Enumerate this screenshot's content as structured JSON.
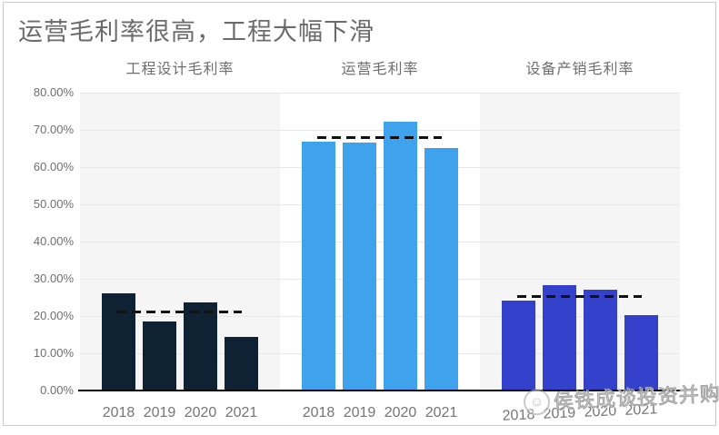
{
  "title": "运营毛利率很高，工程大幅下滑",
  "watermark": {
    "text": "侯铁成谈投资并购",
    "logo": "round-seal-icon"
  },
  "colors": {
    "band": "#f5f5f6",
    "grid": "#e8e8e8",
    "axis": "#000000",
    "dash": "#111111",
    "title_text": "#6b6b6b",
    "label_text": "#6f6f6f",
    "frame_border": "#cbcbcb"
  },
  "chart_data": {
    "type": "bar",
    "title": "运营毛利率很高，工程大幅下滑",
    "categories": [
      "2018",
      "2019",
      "2020",
      "2021"
    ],
    "groups": [
      {
        "label": "工程设计毛利率",
        "color": "#0E2233",
        "values": [
          26.2,
          18.5,
          23.6,
          14.5
        ],
        "dashed_reference": 21.0
      },
      {
        "label": "运营毛利率",
        "color": "#3FA2EC",
        "values": [
          66.8,
          66.6,
          72.1,
          65.1
        ],
        "dashed_reference": 67.8
      },
      {
        "label": "设备产销毛利率",
        "color": "#3341CB",
        "values": [
          24.1,
          28.3,
          27.1,
          20.2
        ],
        "dashed_reference": 25.1
      }
    ],
    "ylabel": "",
    "ylim": [
      0,
      80
    ],
    "yticks": [
      {
        "value": 80,
        "label": "80.00%"
      },
      {
        "value": 70,
        "label": "70.00%"
      },
      {
        "value": 60,
        "label": "60.00%"
      },
      {
        "value": 50,
        "label": "50.00%"
      },
      {
        "value": 40,
        "label": "40.00%"
      },
      {
        "value": 30,
        "label": "30.00%"
      },
      {
        "value": 20,
        "label": "20.00%"
      },
      {
        "value": 10,
        "label": "10.00%"
      },
      {
        "value": 0,
        "label": "0.00%"
      }
    ],
    "grid": true,
    "legend": false,
    "unit": "percent",
    "band_backgrounds": [
      "#f5f5f6",
      "#ffffff",
      "#f5f5f6"
    ]
  }
}
